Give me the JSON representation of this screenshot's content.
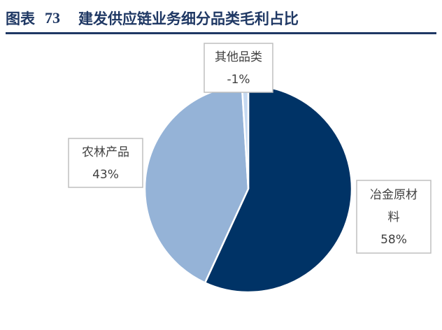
{
  "header": {
    "prefix": "图表",
    "number": "73",
    "title": "建发供应链业务细分品类毛利占比"
  },
  "chart_data": {
    "type": "pie",
    "title": "建发供应链业务细分品类毛利占比",
    "slices": [
      {
        "name": "冶金原材料",
        "value": 58,
        "label_lines": [
          "冶金原材",
          "料"
        ],
        "value_label": "58%",
        "color": "#003366"
      },
      {
        "name": "农林产品",
        "value": 43,
        "label_lines": [
          "农林产品"
        ],
        "value_label": "43%",
        "color": "#95b3d7"
      },
      {
        "name": "其他品类",
        "value": -1,
        "label_lines": [
          "其他品类"
        ],
        "value_label": "-1%",
        "color": "#c5d9f1"
      }
    ]
  },
  "colors": {
    "title": "#1f3864",
    "rule": "#1f3864",
    "label_text": "#404040",
    "label_border": "#bfbfbf"
  }
}
